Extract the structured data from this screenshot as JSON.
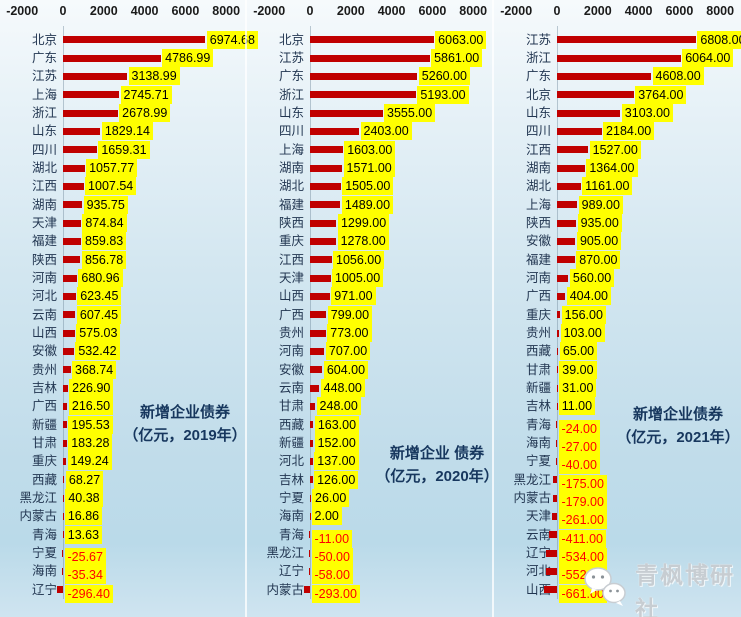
{
  "watermark": {
    "text": "青枫博研社",
    "icon": "wechat-bubbles-icon"
  },
  "chart_data": [
    {
      "type": "bar",
      "orientation": "horizontal",
      "title": "新增企业债券（亿元，2019年）",
      "title_lines": [
        "新增企业债券",
        "（亿元，2019年）"
      ],
      "xlim": [
        -2000,
        8000
      ],
      "xticks": [
        -2000,
        0,
        2000,
        4000,
        6000,
        8000
      ],
      "grid": false,
      "legend": false,
      "bar_color": "#C00000",
      "label_bg": "#FFFF00",
      "positive_label_color": "#000000",
      "negative_label_color": "#FF0000",
      "categories": [
        "北京",
        "广东",
        "江苏",
        "上海",
        "浙江",
        "山东",
        "四川",
        "湖北",
        "江西",
        "湖南",
        "天津",
        "福建",
        "陕西",
        "河南",
        "河北",
        "云南",
        "山西",
        "安徽",
        "贵州",
        "吉林",
        "广西",
        "新疆",
        "甘肃",
        "重庆",
        "西藏",
        "黑龙江",
        "内蒙古",
        "青海",
        "宁夏",
        "海南",
        "辽宁"
      ],
      "values": [
        6974.68,
        4786.99,
        3138.99,
        2745.71,
        2678.99,
        1829.14,
        1659.31,
        1057.77,
        1007.54,
        935.75,
        874.84,
        859.83,
        856.78,
        680.96,
        623.45,
        607.45,
        575.03,
        532.42,
        368.74,
        226.9,
        216.5,
        195.53,
        183.28,
        149.24,
        68.27,
        40.38,
        16.86,
        13.63,
        -25.67,
        -35.34,
        -296.4
      ]
    },
    {
      "type": "bar",
      "orientation": "horizontal",
      "title": "新增企业 债券（亿元，2020年）",
      "title_lines": [
        "新增企业 债券",
        "（亿元，2020年）"
      ],
      "xlim": [
        -2000,
        8000
      ],
      "xticks": [
        -2000,
        0,
        2000,
        4000,
        6000,
        8000
      ],
      "grid": false,
      "legend": false,
      "bar_color": "#C00000",
      "label_bg": "#FFFF00",
      "positive_label_color": "#000000",
      "negative_label_color": "#FF0000",
      "categories": [
        "北京",
        "江苏",
        "广东",
        "浙江",
        "山东",
        "四川",
        "上海",
        "湖南",
        "湖北",
        "福建",
        "陕西",
        "重庆",
        "江西",
        "天津",
        "山西",
        "广西",
        "贵州",
        "河南",
        "安徽",
        "云南",
        "甘肃",
        "西藏",
        "新疆",
        "河北",
        "吉林",
        "宁夏",
        "海南",
        "青海",
        "黑龙江",
        "辽宁",
        "内蒙古"
      ],
      "values": [
        6063,
        5861,
        5260,
        5193,
        3555,
        2403,
        1603,
        1571,
        1505,
        1489,
        1299,
        1278,
        1056,
        1005,
        971,
        799,
        773,
        707,
        604,
        448,
        248,
        163,
        152,
        137,
        126,
        26,
        2,
        -11,
        -50,
        -58,
        -293
      ]
    },
    {
      "type": "bar",
      "orientation": "horizontal",
      "title": "新增企业债券（亿元，2021年）",
      "title_lines": [
        "新增企业债券",
        "（亿元，2021年）"
      ],
      "xlim": [
        -2000,
        8000
      ],
      "xticks": [
        -2000,
        0,
        2000,
        4000,
        6000,
        8000
      ],
      "grid": false,
      "legend": false,
      "bar_color": "#C00000",
      "label_bg": "#FFFF00",
      "positive_label_color": "#000000",
      "negative_label_color": "#FF0000",
      "categories": [
        "江苏",
        "浙江",
        "广东",
        "北京",
        "山东",
        "四川",
        "江西",
        "湖南",
        "湖北",
        "上海",
        "陕西",
        "安徽",
        "福建",
        "河南",
        "广西",
        "重庆",
        "贵州",
        "西藏",
        "甘肃",
        "新疆",
        "吉林",
        "青海",
        "海南",
        "宁夏",
        "黑龙江",
        "内蒙古",
        "天津",
        "云南",
        "辽宁",
        "河北",
        "山西"
      ],
      "values": [
        6808,
        6064,
        4608,
        3764,
        3103,
        2184,
        1527,
        1364,
        1161,
        989,
        935,
        905,
        870,
        560,
        404,
        156,
        103,
        65,
        39,
        31,
        11,
        -24,
        -27,
        -40,
        -175,
        -179,
        -261,
        -411,
        -534,
        -552,
        -661
      ]
    }
  ]
}
